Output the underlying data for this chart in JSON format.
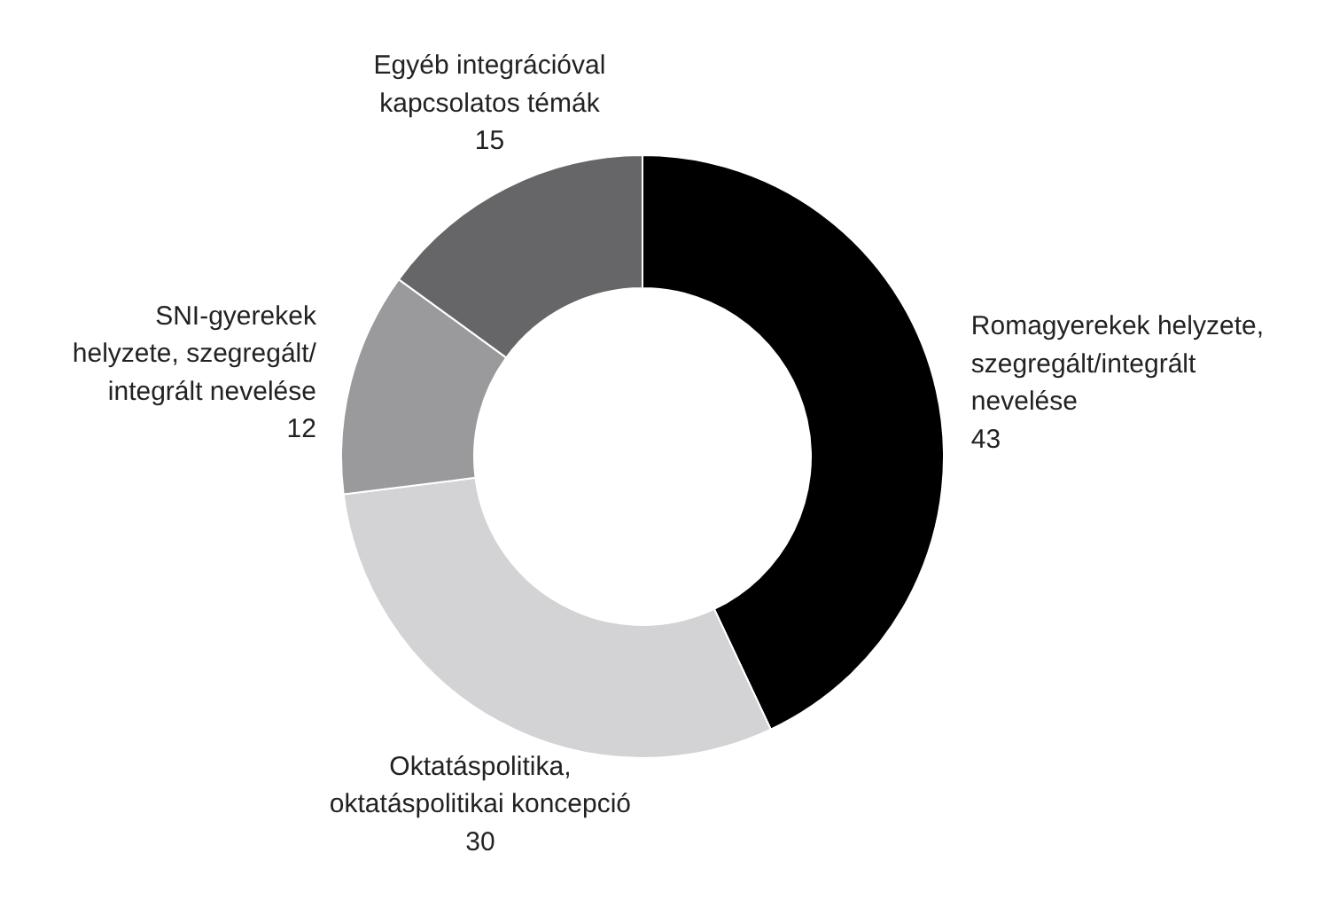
{
  "chart_data": {
    "type": "donut",
    "categories": [
      "Romagyerekek helyzete,\nszegregált/integrált\nnevelése",
      "Oktatáspolitika,\noktatáspolitikai koncepció",
      "SNI-gyerekek\nhelyzete, szegregált/\nintegrált nevelése",
      "Egyéb integrációval\nkapcsolatos témák"
    ],
    "values": [
      43,
      30,
      12,
      15
    ],
    "colors": [
      "#000000",
      "#d3d3d5",
      "#9a9a9c",
      "#666668"
    ],
    "data_labels": true
  }
}
